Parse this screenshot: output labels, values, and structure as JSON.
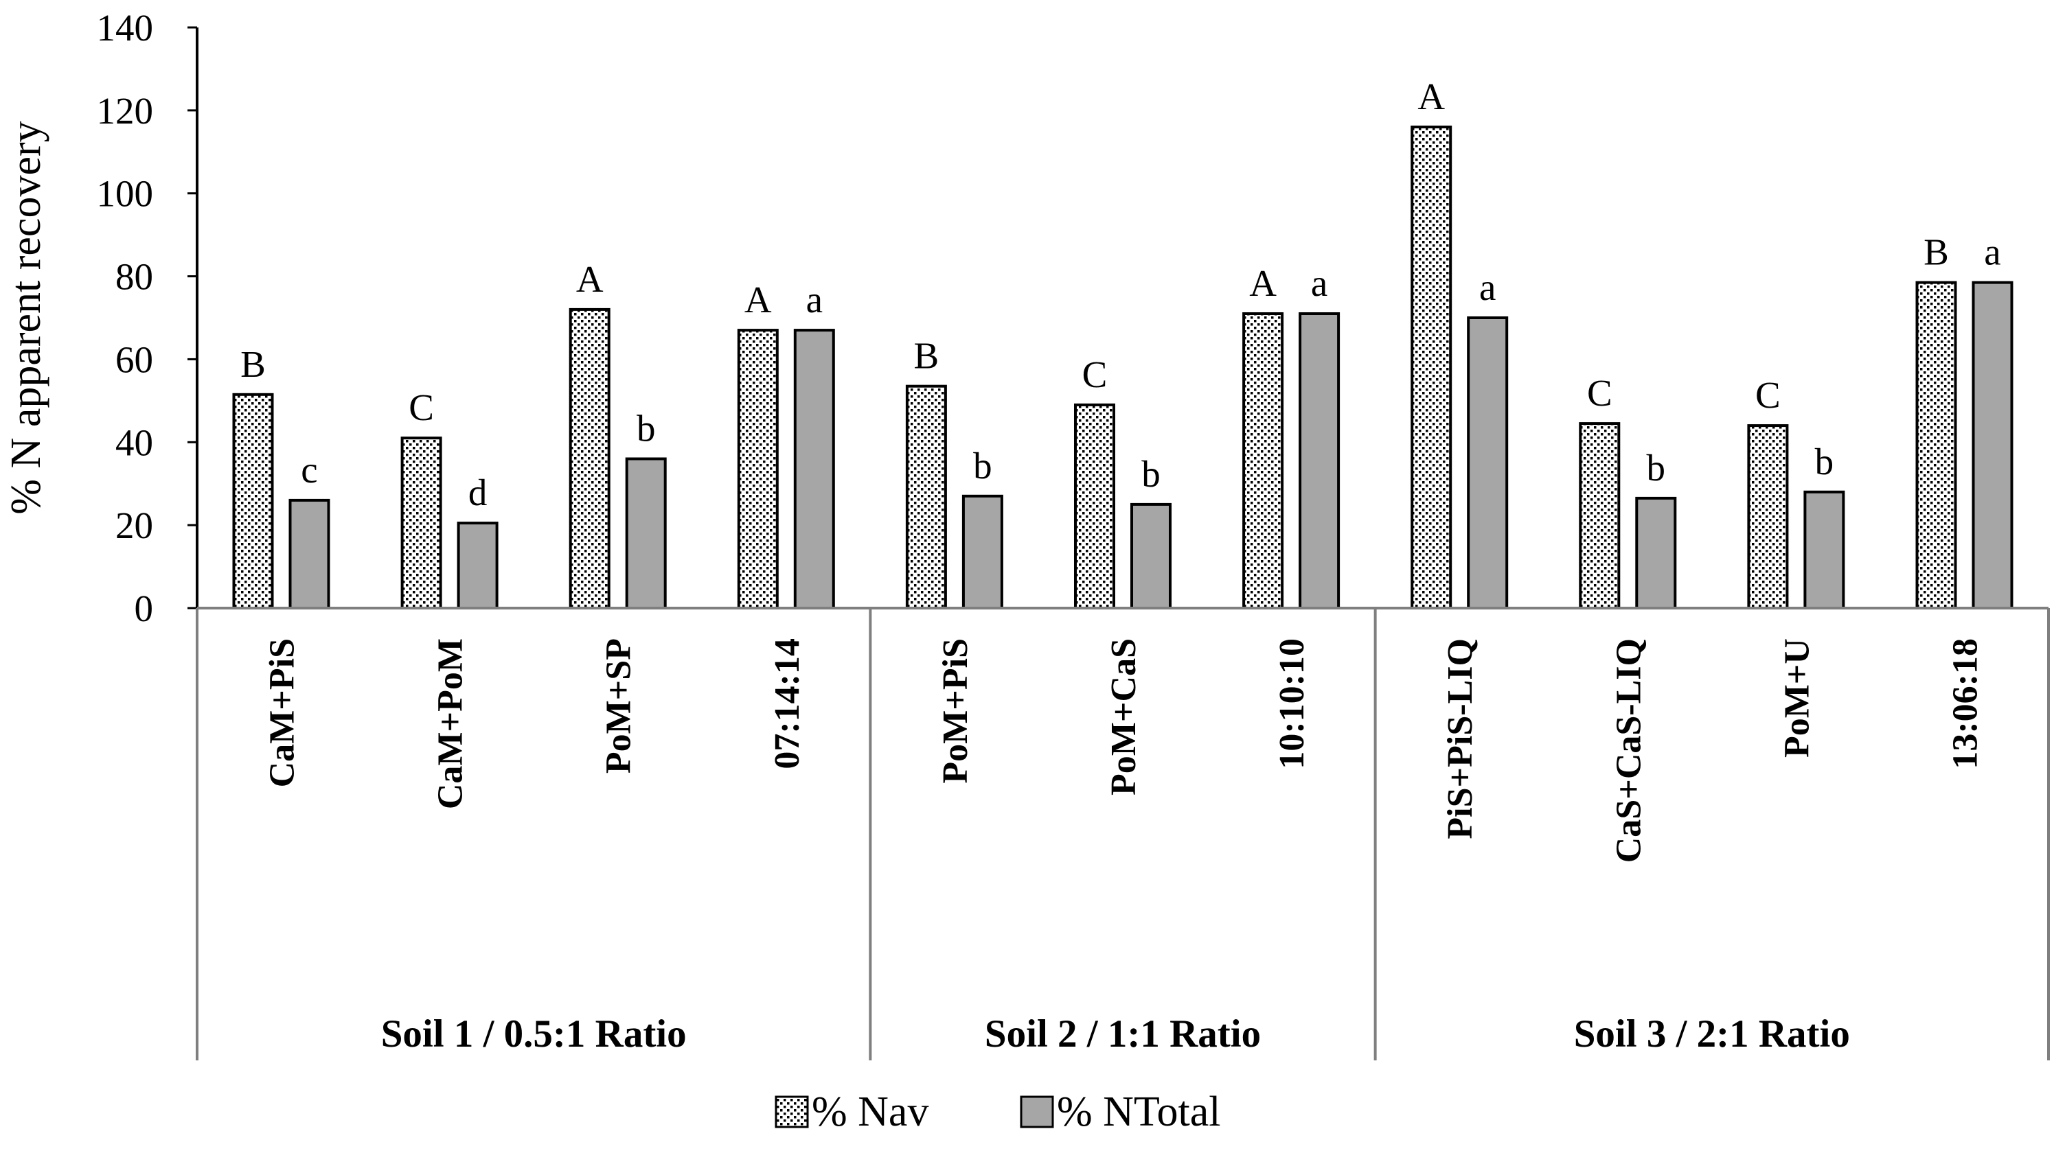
{
  "chart_data": {
    "type": "bar",
    "title": "",
    "ylabel": "% N apparent recovery",
    "xlabel": "",
    "ylim": [
      0,
      140
    ],
    "yticks": [
      0,
      20,
      40,
      60,
      80,
      100,
      120,
      140
    ],
    "grid": false,
    "legend_position": "bottom",
    "colors": {
      "nav_fill": "#ffffff",
      "nav_dots": "#000000",
      "ntotal_fill": "#a6a6a6",
      "axis": "#7f7f7f",
      "bar_edge": "#000000"
    },
    "groups": [
      {
        "label": "Soil 1 / 0.5:1 Ratio",
        "categories": [
          "CaM+PiS",
          "CaM+PoM",
          "PoM+SP",
          "07:14:14"
        ]
      },
      {
        "label": "Soil 2 / 1:1 Ratio",
        "categories": [
          "PoM+PiS",
          "PoM+CaS",
          "10:10:10"
        ]
      },
      {
        "label": "Soil 3 / 2:1 Ratio",
        "categories": [
          "PiS+PiS-LIQ",
          "CaS+CaS-LIQ",
          "PoM+U",
          "13:06:18"
        ]
      }
    ],
    "categories": [
      "CaM+PiS",
      "CaM+PoM",
      "PoM+SP",
      "07:14:14",
      "PoM+PiS",
      "PoM+CaS",
      "10:10:10",
      "PiS+PiS-LIQ",
      "CaS+CaS-LIQ",
      "PoM+U",
      "13:06:18"
    ],
    "series": [
      {
        "name": "% Nav",
        "values": [
          51.5,
          41,
          72,
          67,
          53.5,
          49,
          71,
          116,
          44.5,
          44,
          78.5
        ],
        "letters": [
          "B",
          "C",
          "A",
          "A",
          "B",
          "C",
          "A",
          "A",
          "C",
          "C",
          "B"
        ]
      },
      {
        "name": "% NTotal",
        "values": [
          26,
          20.5,
          36,
          67,
          27,
          25,
          71,
          70,
          26.5,
          28,
          78.5
        ],
        "letters": [
          "c",
          "d",
          "b",
          "a",
          "b",
          "b",
          "a",
          "a",
          "b",
          "b",
          "a"
        ]
      }
    ]
  }
}
